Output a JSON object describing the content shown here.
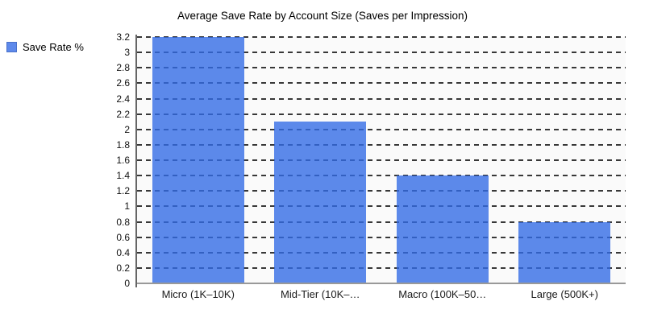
{
  "chart": {
    "title": "Average Save Rate by Account Size (Saves per Impression)"
  },
  "legend": {
    "label": "Save Rate %",
    "swatch_color": "#5d89eb",
    "position": "left-top"
  },
  "chart_data": {
    "type": "bar",
    "title": "Average Save Rate by Account Size (Saves per Impression)",
    "categories": [
      "Micro (1K–10K)",
      "Mid-Tier (10K–…",
      "Macro (100K–50…",
      "Large (500K+)"
    ],
    "series": [
      {
        "name": "Save Rate %",
        "values": [
          3.2,
          2.1,
          1.4,
          0.8
        ]
      }
    ],
    "xlabel": "",
    "ylabel": "",
    "ylim": [
      0,
      3.2
    ],
    "ytick_labels": [
      "0",
      "0.2",
      "0.4",
      "0.6",
      "0.8",
      "1",
      "1.2",
      "1.4",
      "1.6",
      "1.8",
      "2",
      "2.2",
      "2.4",
      "2.6",
      "2.8",
      "3",
      "3.2"
    ],
    "grid": "dashed-horizontal",
    "legend_position": "left-top",
    "colors": {
      "bar": "#3269e6",
      "bar_rendered": "#5d89eb",
      "gridline": "#383838",
      "y_axis_line": "#666666",
      "baseline": "#999999",
      "plot_background": "#fafafa",
      "page_background": "#ffffff",
      "text": "#000000"
    }
  }
}
